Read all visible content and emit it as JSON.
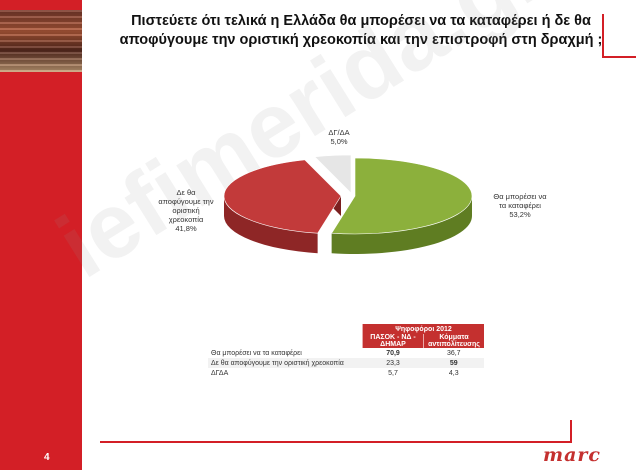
{
  "page_number": "4",
  "title": "Πιστεύετε ότι τελικά η Ελλάδα θα μπορέσει να τα καταφέρει ή δε θα αποφύγουμε την οριστική χρεοκοπία και την επιστροφή στη δραχμή ;",
  "watermark": "iefimerida.gr",
  "logo": "marc",
  "colors": {
    "accent": "#d31f26",
    "slice_green": "#8cb03c",
    "slice_red": "#c23a3a",
    "slice_gray": "#e6e6e6"
  },
  "chart_data": {
    "type": "pie",
    "title": "",
    "slices": [
      {
        "name": "Θα μπορέσει να τα καταφέρει",
        "label_lines": [
          "Θα μπορέσει να",
          "τα καταφέρει"
        ],
        "value": 53.2,
        "value_label": "53,2%"
      },
      {
        "name": "Δε θα αποφύγουμε την οριστική χρεοκοπία",
        "label_lines": [
          "Δε θα",
          "αποφύγουμε την",
          "οριστική",
          "χρεοκοπία"
        ],
        "value": 41.8,
        "value_label": "41,8%"
      },
      {
        "name": "ΔΓ/ΔΑ",
        "label_lines": [
          "ΔΓ/ΔΑ"
        ],
        "value": 5.0,
        "value_label": "5,0%"
      }
    ]
  },
  "table": {
    "group_header": "Ψηφοφόροι 2012",
    "columns": [
      "ΠΑΣΟΚ - ΝΔ - ΔΗΜΑΡ",
      "Κόμματα αντιπολίτευσης"
    ],
    "rows": [
      {
        "label": "Θα μπορέσει να τα καταφέρει",
        "values": [
          "70,9",
          "36,7"
        ]
      },
      {
        "label": "Δε θα αποφύγουμε την οριστική χρεοκοπία",
        "values": [
          "23,3",
          "59"
        ]
      },
      {
        "label": "ΔΓΔΑ",
        "values": [
          "5,7",
          "4,3"
        ]
      }
    ]
  }
}
